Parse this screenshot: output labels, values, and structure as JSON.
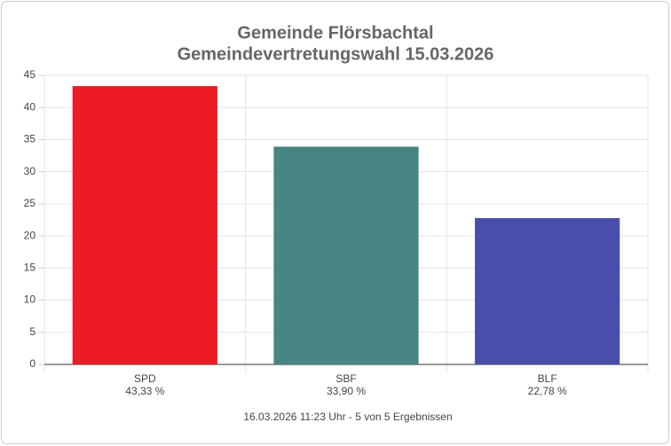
{
  "chart_data": {
    "type": "bar",
    "title": "Gemeinde Flörsbachtal",
    "subtitle": "Gemeindevertretungswahl 15.03.2026",
    "categories": [
      "SPD",
      "SBF",
      "BLF"
    ],
    "values": [
      43.33,
      33.9,
      22.78
    ],
    "value_labels": [
      "43,33 %",
      "33,90 %",
      "22,78 %"
    ],
    "colors": [
      "#ed1c24",
      "#468582",
      "#484fab"
    ],
    "ylim": [
      0,
      45
    ],
    "yticks": [
      0,
      5,
      10,
      15,
      20,
      25,
      30,
      35,
      40,
      45
    ],
    "grid": true,
    "footer": "16.03.2026 11:23 Uhr - 5 von 5 Ergebnissen"
  }
}
